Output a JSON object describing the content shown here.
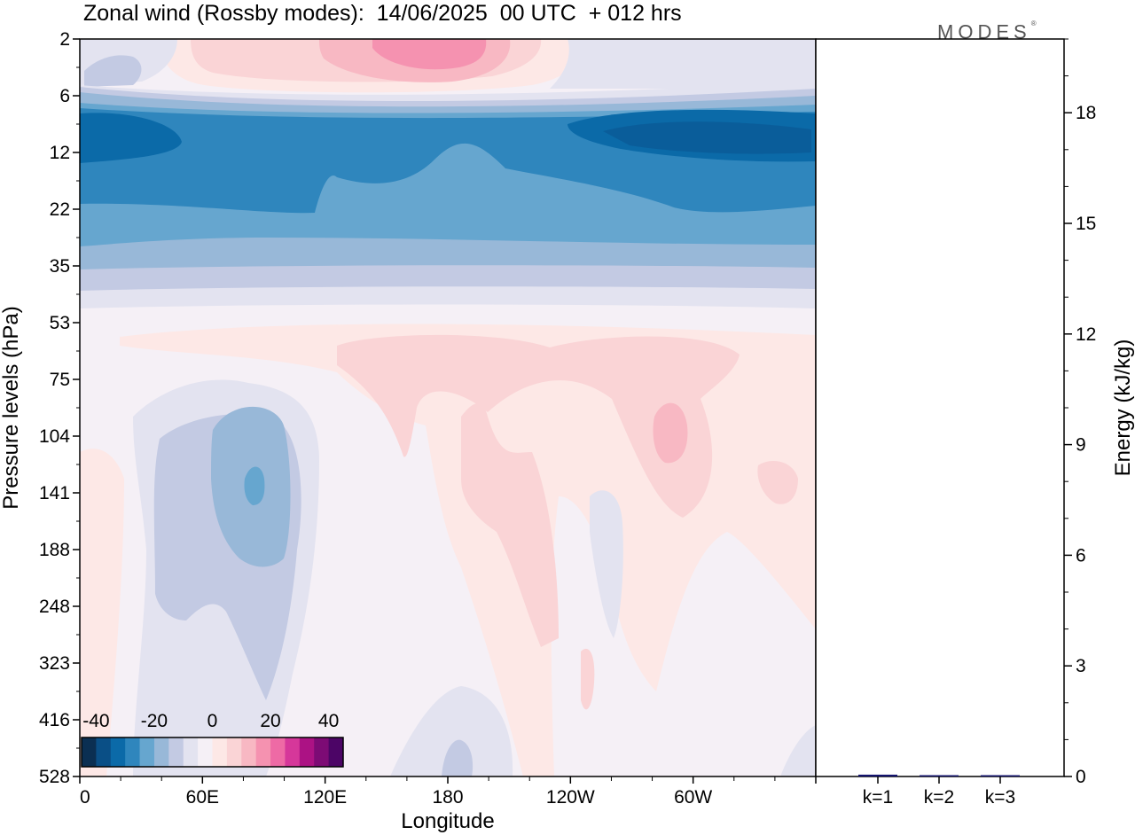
{
  "title": "Zonal wind (Rossby modes):  14/06/2025  00 UTC  + 012 hrs",
  "logo": {
    "text": "MODES",
    "mark": "®"
  },
  "colors": {
    "scale": [
      "#0b2f52",
      "#0a4f86",
      "#0b6aa8",
      "#2f86bd",
      "#66a6cf",
      "#98b8d8",
      "#c3cae3",
      "#e3e3f0",
      "#f5f0f6",
      "#fde8e6",
      "#fad4d6",
      "#f8b8c3",
      "#f592b0",
      "#ee6aa5",
      "#d6379a",
      "#ac1284",
      "#7d0b75",
      "#4c0566"
    ]
  },
  "chart_data": [
    {
      "type": "heatmap",
      "title": "Zonal wind (Rossby modes):  14/06/2025  00 UTC  + 012 hrs",
      "xlabel": "Longitude",
      "ylabel": "Pressure levels (hPa)",
      "x_ticks": [
        "0",
        "60E",
        "120E",
        "180",
        "120W",
        "60W"
      ],
      "y_ticks": [
        "2",
        "6",
        "12",
        "22",
        "35",
        "53",
        "75",
        "104",
        "141",
        "188",
        "248",
        "323",
        "416",
        "528"
      ],
      "colorbar": {
        "ticks": [
          "-40",
          "-20",
          "0",
          "20",
          "40"
        ],
        "range": [
          -45,
          45
        ],
        "step": 5
      },
      "features": [
        {
          "region": "2-6 hPa, 40E-130W",
          "value": 20
        },
        {
          "region": "6-35 hPa, all longitudes",
          "value": -35
        },
        {
          "region": "53-141 hPa, 120E-80W",
          "value": 10
        },
        {
          "region": "75-188 hPa, 40E-70E",
          "value": -20
        },
        {
          "region": "104 hPa, 55W",
          "value": 15
        }
      ]
    },
    {
      "type": "bar",
      "categories": [
        "k=1",
        "k=2",
        "k=3"
      ],
      "values": [
        0.05,
        0.03,
        0.02
      ],
      "ylabel": "Energy (kJ/kg)",
      "y_ticks": [
        "0",
        "3",
        "6",
        "9",
        "12",
        "15",
        "18"
      ],
      "ylim": [
        0,
        20
      ]
    }
  ]
}
